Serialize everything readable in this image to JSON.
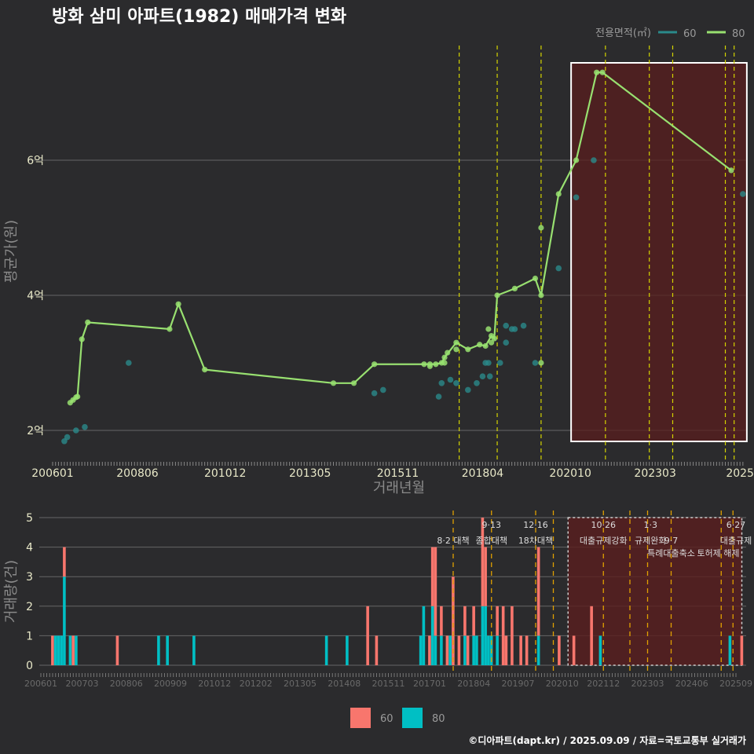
{
  "chart_data": [
    {
      "type": "line",
      "title": "방화 삼미 아파트(1982) 매매가격 변화",
      "xlabel": "거래년월",
      "ylabel": "평균가(원)",
      "x_units": "months since 2006-01",
      "ylim": [
        1.6,
        7.6
      ],
      "y_units": "억",
      "yticks": [
        {
          "v": 2,
          "label": "2억"
        },
        {
          "v": 4,
          "label": "4억"
        },
        {
          "v": 6,
          "label": "6억"
        }
      ],
      "xticks": [
        {
          "m": 0,
          "label": "200601"
        },
        {
          "m": 29,
          "label": "200806"
        },
        {
          "m": 59,
          "label": "201012"
        },
        {
          "m": 88,
          "label": "201305"
        },
        {
          "m": 118,
          "label": "201511"
        },
        {
          "m": 147,
          "label": "201804"
        },
        {
          "m": 177,
          "label": "202010"
        },
        {
          "m": 206,
          "label": "202303"
        },
        {
          "m": 235,
          "label": "2025"
        }
      ],
      "legend": {
        "title": "전용면적(㎡)",
        "position": "top-right",
        "items": [
          "60",
          "80"
        ]
      },
      "colors": {
        "60": "#2a8a8a",
        "80": "#98e070",
        "policy_line": "#d4d400",
        "highlight": "#5a1e1e"
      },
      "policy_months": [
        139,
        152,
        167,
        189,
        204,
        212,
        230,
        233
      ],
      "highlight_range": [
        177,
        236
      ],
      "series": [
        {
          "name": "80",
          "line": true,
          "points": [
            [
              6,
              2.41
            ],
            [
              7,
              2.45
            ],
            [
              8,
              2.49
            ],
            [
              8.5,
              2.5
            ],
            [
              10,
              3.35
            ],
            [
              12,
              3.6
            ],
            [
              40,
              3.5
            ],
            [
              43,
              3.87
            ],
            [
              52,
              2.9
            ],
            [
              96,
              2.7
            ],
            [
              103,
              2.7
            ],
            [
              110,
              2.98
            ],
            [
              127,
              2.98
            ],
            [
              129,
              2.98
            ],
            [
              131,
              2.98
            ],
            [
              133,
              3.0
            ],
            [
              134,
              3.08
            ],
            [
              138,
              3.3
            ],
            [
              142,
              3.2
            ],
            [
              146,
              3.27
            ],
            [
              148,
              3.25
            ],
            [
              150,
              3.4
            ],
            [
              151,
              3.36
            ],
            [
              152,
              4.0
            ],
            [
              158,
              4.1
            ],
            [
              165,
              4.25
            ],
            [
              167,
              4.0
            ],
            [
              173,
              5.5
            ],
            [
              179,
              6.0
            ],
            [
              186,
              7.3
            ],
            [
              188,
              7.3
            ],
            [
              232,
              5.85
            ]
          ],
          "extra_points": [
            [
              167,
              5.0
            ],
            [
              167,
              3.0
            ],
            [
              129,
              2.95
            ],
            [
              134,
              3.0
            ],
            [
              135,
              3.15
            ],
            [
              138,
              3.2
            ],
            [
              149,
              3.5
            ],
            [
              150,
              3.3
            ]
          ]
        },
        {
          "name": "60",
          "line": false,
          "points": [
            [
              4,
              1.84
            ],
            [
              5,
              1.9
            ],
            [
              8,
              2.0
            ],
            [
              11,
              2.05
            ],
            [
              26,
              3.0
            ],
            [
              110,
              2.55
            ],
            [
              113,
              2.6
            ],
            [
              132,
              2.5
            ],
            [
              133,
              2.7
            ],
            [
              136,
              2.75
            ],
            [
              138,
              2.7
            ],
            [
              142,
              2.6
            ],
            [
              145,
              2.7
            ],
            [
              147,
              2.8
            ],
            [
              148,
              3.0
            ],
            [
              149,
              3.0
            ],
            [
              149.5,
              2.8
            ],
            [
              153,
              3.0
            ],
            [
              155,
              3.55
            ],
            [
              155,
              3.3
            ],
            [
              157,
              3.5
            ],
            [
              158,
              3.5
            ],
            [
              161,
              3.55
            ],
            [
              165,
              3.0
            ],
            [
              173,
              4.4
            ],
            [
              179,
              5.45
            ],
            [
              185,
              6.0
            ],
            [
              236,
              5.5
            ]
          ]
        }
      ]
    },
    {
      "type": "bar",
      "stacked": true,
      "ylabel": "거래량(건)",
      "ylim": [
        0,
        5
      ],
      "yticks": [
        0,
        1,
        2,
        3,
        4,
        5
      ],
      "xticks": [
        {
          "m": 0,
          "label": "200601"
        },
        {
          "m": 14,
          "label": "200703"
        },
        {
          "m": 29,
          "label": "200806"
        },
        {
          "m": 44,
          "label": "200909"
        },
        {
          "m": 59,
          "label": "201012"
        },
        {
          "m": 73,
          "label": "201202"
        },
        {
          "m": 88,
          "label": "201305"
        },
        {
          "m": 103,
          "label": "201408"
        },
        {
          "m": 118,
          "label": "201511"
        },
        {
          "m": 132,
          "label": "201701"
        },
        {
          "m": 147,
          "label": "201804"
        },
        {
          "m": 162,
          "label": "201907"
        },
        {
          "m": 177,
          "label": "202010"
        },
        {
          "m": 191,
          "label": "202112"
        },
        {
          "m": 206,
          "label": "202303"
        },
        {
          "m": 221,
          "label": "202406"
        },
        {
          "m": 236,
          "label": "202509"
        }
      ],
      "legend": {
        "position": "bottom",
        "items": [
          "60",
          "80"
        ]
      },
      "colors": {
        "60": "#f8766d",
        "80": "#00bfc4",
        "policy_line": "#e0a000"
      },
      "bars": [
        {
          "m": 4,
          "c60": 1,
          "c80": 0
        },
        {
          "m": 5,
          "c60": 0,
          "c80": 1
        },
        {
          "m": 6,
          "c60": 0,
          "c80": 1
        },
        {
          "m": 7,
          "c60": 0,
          "c80": 1
        },
        {
          "m": 8,
          "c60": 1,
          "c80": 3
        },
        {
          "m": 10,
          "c60": 0,
          "c80": 1
        },
        {
          "m": 11,
          "c60": 1,
          "c80": 0
        },
        {
          "m": 12,
          "c60": 0,
          "c80": 1
        },
        {
          "m": 26,
          "c60": 1,
          "c80": 0
        },
        {
          "m": 40,
          "c60": 0,
          "c80": 1
        },
        {
          "m": 43,
          "c60": 0,
          "c80": 1
        },
        {
          "m": 52,
          "c60": 0,
          "c80": 1
        },
        {
          "m": 97,
          "c60": 0,
          "c80": 1
        },
        {
          "m": 104,
          "c60": 0,
          "c80": 1
        },
        {
          "m": 111,
          "c60": 2,
          "c80": 0
        },
        {
          "m": 114,
          "c60": 1,
          "c80": 0
        },
        {
          "m": 129,
          "c60": 0,
          "c80": 1
        },
        {
          "m": 130,
          "c60": 0,
          "c80": 2
        },
        {
          "m": 132,
          "c60": 1,
          "c80": 0
        },
        {
          "m": 133,
          "c60": 2,
          "c80": 2
        },
        {
          "m": 134,
          "c60": 3,
          "c80": 1
        },
        {
          "m": 136,
          "c60": 1,
          "c80": 1
        },
        {
          "m": 138,
          "c60": 1,
          "c80": 0
        },
        {
          "m": 139,
          "c60": 0,
          "c80": 1
        },
        {
          "m": 140,
          "c60": 3,
          "c80": 0
        },
        {
          "m": 142,
          "c60": 1,
          "c80": 0
        },
        {
          "m": 144,
          "c60": 1,
          "c80": 1
        },
        {
          "m": 145,
          "c60": 1,
          "c80": 0
        },
        {
          "m": 147,
          "c60": 1,
          "c80": 1
        },
        {
          "m": 148,
          "c60": 0,
          "c80": 1
        },
        {
          "m": 150,
          "c60": 3,
          "c80": 2
        },
        {
          "m": 151,
          "c60": 2,
          "c80": 2
        },
        {
          "m": 152,
          "c60": 0,
          "c80": 1
        },
        {
          "m": 153,
          "c60": 0,
          "c80": 1
        },
        {
          "m": 155,
          "c60": 1,
          "c80": 1
        },
        {
          "m": 157,
          "c60": 2,
          "c80": 0
        },
        {
          "m": 158,
          "c60": 1,
          "c80": 0
        },
        {
          "m": 160,
          "c60": 2,
          "c80": 0
        },
        {
          "m": 163,
          "c60": 1,
          "c80": 0
        },
        {
          "m": 165,
          "c60": 1,
          "c80": 0
        },
        {
          "m": 169,
          "c60": 3,
          "c80": 1
        },
        {
          "m": 176,
          "c60": 1,
          "c80": 0
        },
        {
          "m": 181,
          "c60": 1,
          "c80": 0
        },
        {
          "m": 187,
          "c60": 2,
          "c80": 0
        },
        {
          "m": 190,
          "c60": 0,
          "c80": 1
        },
        {
          "m": 234,
          "c60": 0,
          "c80": 1
        },
        {
          "m": 238,
          "c60": 1,
          "c80": 0
        }
      ],
      "policy_months": [
        140,
        153,
        168,
        174,
        191,
        200,
        206,
        214,
        231,
        235
      ],
      "highlight_range": [
        179,
        238
      ],
      "annotations": [
        {
          "m": 140,
          "row": 1,
          "text": "8·2 대책"
        },
        {
          "m": 153,
          "row": 0,
          "text": "9·13"
        },
        {
          "m": 153,
          "row": 1,
          "text": "종합대책"
        },
        {
          "m": 168,
          "row": 0,
          "text": "12·16"
        },
        {
          "m": 168,
          "row": 1,
          "text": "18차대책"
        },
        {
          "m": 191,
          "row": 0,
          "text": "10·26"
        },
        {
          "m": 191,
          "row": 1,
          "text": "대출규제강화"
        },
        {
          "m": 207,
          "row": 0,
          "text": "1·3"
        },
        {
          "m": 207,
          "row": 1,
          "text": "규제완화"
        },
        {
          "m": 214,
          "row": 1,
          "text": "9·7"
        },
        {
          "m": 214,
          "row": 2,
          "text": "특례대출축소"
        },
        {
          "m": 230,
          "row": 2,
          "text": "토허제 해제"
        },
        {
          "m": 236,
          "row": 0,
          "text": "6·27"
        },
        {
          "m": 236,
          "row": 1,
          "text": "대출규제"
        }
      ]
    }
  ],
  "footer": "©디아파트(dapt.kr) / 2025.09.09 / 자료=국토교통부 실거래가"
}
